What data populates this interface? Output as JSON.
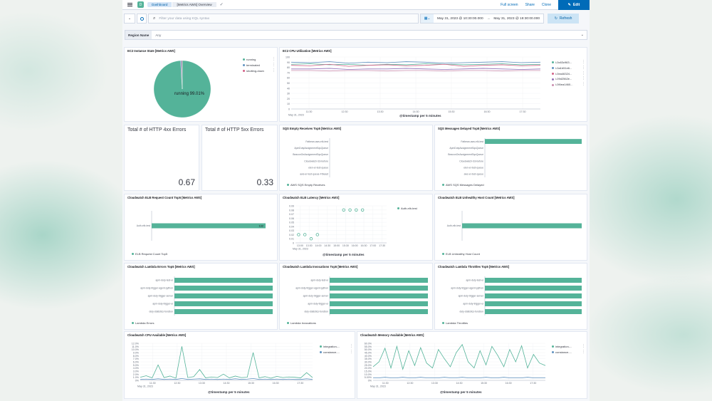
{
  "header": {
    "breadcrumb_root": "Dashboard",
    "breadcrumb_current": "[Metrics AWS] Overview",
    "full_screen": "Full screen",
    "share": "Share",
    "clone": "Clone",
    "edit": "Edit"
  },
  "query": {
    "placeholder": "Filter your data using KQL syntax",
    "date_start": "May 31, 2023 @ 10:30:00.000",
    "arrow": "→",
    "date_end": "May 31, 2023 @ 18:30:00.000",
    "refresh": "Refresh"
  },
  "filter": {
    "label": "Region Name",
    "value": "Any"
  },
  "colors": {
    "teal": "#54b399",
    "blue": "#6092c0",
    "pink": "#d36086",
    "purple": "#9170b8",
    "pinkLight": "#ca8eae"
  },
  "panels": {
    "ec2_state": {
      "title": "EC2 Instance State [Metrics AWS]",
      "legend": [
        "running",
        "terminated",
        "shutting-down"
      ],
      "slice_label": "running 99.01%"
    },
    "cpu_util": {
      "title": "EC2 CPU Utilization [Metrics AWS]",
      "legend": [
        "i-0c63c963...",
        "i-0a1b51e6...",
        "i-0ea46324...",
        "i-09d2562e...",
        "i-0f4ea1460..."
      ],
      "xaxis_label": "@timestamp per 5 minutes",
      "date": "May 31, 2023"
    },
    "http4xx": {
      "title": "Total # of HTTP 4xx Errors",
      "value": "0.67"
    },
    "http5xx": {
      "title": "Total # of HTTP 5xx Errors",
      "value": "0.33"
    },
    "sqs_empty": {
      "title": "SQS Empty Receives Top5 [Metrics AWS]",
      "legend": "AWS SQS Empty Receives"
    },
    "sqs_delayed": {
      "title": "SQS Messages Delayed Top5 [Metrics AWS]",
      "legend": "AWS SQS Messages Delayed"
    },
    "elb_request": {
      "title": "Cloudwatch ELB Request Count Top5 [Metrics AWS]",
      "legend": "ELB Request Count Top5",
      "bar_label": "132"
    },
    "elb_latency": {
      "title": "Cloudwatch ELB Latency [Metrics AWS]",
      "legend": "Auth-elb-test",
      "xaxis_label": "@timestamp per 5 minutes",
      "date": "May 31, 2023"
    },
    "elb_unhealthy": {
      "title": "Cloudwatch ELB Unhealthy Host Count [Metrics AWS]",
      "legend": "ELB Unhealthy Host Count"
    },
    "lambda_errors": {
      "title": "Cloudwatch Lambda Errors Top5 [Metrics AWS]",
      "legend": "Lambda Errors"
    },
    "lambda_invocations": {
      "title": "Cloudwatch Lambda Invocations Top5 [Metrics AWS]",
      "legend": "Lambda Invocations"
    },
    "lambda_throttles": {
      "title": "Cloudwatch Lambda Throttles Top5 [Metrics AWS]",
      "legend": "Lambda Throttles"
    },
    "cpu_available": {
      "title": "Cloudwatch CPU Available [Metrics AWS]",
      "legend": [
        "integration-...",
        "constance-..."
      ],
      "xaxis_label": "@timestamp per 5 minutes",
      "date": "May 31, 2023"
    },
    "mem_available": {
      "title": "Cloudwatch Memory Available [Metrics AWS]",
      "legend": [
        "integration-...",
        "constance-..."
      ],
      "xaxis_label": "@timestamp per 5 minutes",
      "date": "May 31, 2023"
    }
  },
  "chart_data": [
    {
      "type": "pie",
      "panel": "ec2_state",
      "categories": [
        "running",
        "terminated",
        "shutting-down"
      ],
      "values": [
        99.01,
        0.6,
        0.39
      ],
      "colors": [
        "#54b399",
        "#6092c0",
        "#d36086"
      ]
    },
    {
      "type": "line",
      "panel": "cpu_util",
      "x": [
        "11:30",
        "12:00",
        "12:30",
        "13:00",
        "13:30",
        "14:00",
        "14:30",
        "15:00",
        "15:30",
        "16:00",
        "16:30",
        "17:00",
        "17:30",
        "18:00"
      ],
      "xticks": [
        "11:30",
        "12:30",
        "13:30",
        "14:30",
        "15:30",
        "16:30",
        "17:30"
      ],
      "yticks": [
        "0",
        "10",
        "20",
        "30",
        "40",
        "50",
        "60",
        "70",
        "80",
        "90",
        "100"
      ],
      "ylim": [
        0,
        100
      ],
      "series": [
        {
          "name": "i-0c63c963...",
          "color": "#54b399",
          "values": [
            86,
            87,
            85,
            86,
            84,
            86,
            85,
            87,
            86,
            85,
            86,
            87,
            85,
            86
          ]
        },
        {
          "name": "i-0a1b51e6...",
          "color": "#6092c0",
          "values": [
            90,
            89,
            91,
            88,
            90,
            89,
            91,
            90,
            88,
            89,
            90,
            91,
            89,
            90
          ]
        },
        {
          "name": "i-0ea46324...",
          "color": "#d36086",
          "values": [
            84,
            83,
            86,
            82,
            84,
            85,
            83,
            84,
            86,
            82,
            84,
            85,
            83,
            84
          ]
        },
        {
          "name": "i-09d2562e...",
          "color": "#9170b8",
          "values": [
            77,
            77,
            78,
            76,
            77,
            77,
            78,
            77,
            76,
            77,
            78,
            77,
            76,
            77
          ]
        },
        {
          "name": "i-0f4ea1460...",
          "color": "#ca8eae",
          "values": [
            74,
            74,
            73,
            74,
            74,
            73,
            74,
            74,
            73,
            74,
            74,
            73,
            74,
            74
          ]
        }
      ]
    },
    {
      "type": "bar",
      "panel": "sqs_empty",
      "orientation": "horizontal",
      "categories": [
        "Fatbean-aws-elk-test",
        "ApmDutyAssignmentSqsQueue",
        "BeaconOnAssignmentSqsQueue",
        "Cloudwatch-S3-before",
        "elen-er-test-queue",
        "aws-er-test-queue-FIbeast"
      ],
      "values": [
        0,
        0,
        0,
        0,
        0,
        0
      ]
    },
    {
      "type": "bar",
      "panel": "sqs_delayed",
      "orientation": "horizontal",
      "categories": [
        "Fatbean-aws-elk-test",
        "ApmDutyAssignmentSqsQueue",
        "BeaconOnAssignmentSqsQueue",
        "Cloudwatch-S3-before",
        "elen-er-test-queue",
        "aws-er-test-queue"
      ],
      "values": [
        1,
        0,
        0,
        0,
        0,
        0
      ]
    },
    {
      "type": "bar",
      "panel": "elb_request",
      "orientation": "horizontal",
      "categories": [
        "Auth-elb-test"
      ],
      "values": [
        132
      ]
    },
    {
      "type": "scatter",
      "panel": "elb_latency",
      "x": [
        "11:54",
        "12:10",
        "12:25",
        "12:40",
        "13:12",
        "13:35",
        "13:45",
        "13:55"
      ],
      "values": [
        0.02,
        0.02,
        0.01,
        0.02,
        0.08,
        0.08,
        0.08,
        0.08
      ],
      "xticks": [
        "13:00",
        "13:30",
        "14:00",
        "14:30",
        "15:00",
        "15:30",
        "16:00",
        "16:30",
        "17:00",
        "17:30"
      ],
      "yticks": [
        "0",
        "0.01",
        "0.02",
        "0.03",
        "0.04",
        "0.05",
        "0.06",
        "0.07",
        "0.08",
        "0.09"
      ],
      "ylim": [
        0,
        0.09
      ]
    },
    {
      "type": "bar",
      "panel": "elb_unhealthy",
      "orientation": "horizontal",
      "categories": [
        "Auth-elb-test"
      ],
      "values": [
        1
      ]
    },
    {
      "type": "bar",
      "panel": "lambda_errors",
      "orientation": "horizontal",
      "categories": [
        "apm-duty-test-ui",
        "apm-duty-trigger-agent-python",
        "apm-duty-trigger-server",
        "apm-duty-trigger-ui",
        "duty-statistics-function"
      ],
      "values": [
        1,
        1,
        1,
        1,
        1
      ]
    },
    {
      "type": "bar",
      "panel": "lambda_invocations",
      "orientation": "horizontal",
      "categories": [
        "apm-duty-test-ui",
        "apm-duty-trigger-agent-python",
        "apm-duty-trigger-server",
        "apm-duty-trigger-ui",
        "duty-statistics-function"
      ],
      "values": [
        1,
        1,
        1,
        1,
        1
      ]
    },
    {
      "type": "bar",
      "panel": "lambda_throttles",
      "orientation": "horizontal",
      "categories": [
        "apm-duty-test-ui",
        "apm-duty-trigger-agent-python",
        "apm-duty-trigger-server",
        "apm-duty-trigger-ui",
        "duty-statistics-function"
      ],
      "values": [
        1,
        1,
        1,
        1,
        1
      ]
    },
    {
      "type": "line",
      "panel": "cpu_available",
      "yticks": [
        "0%",
        "1.0%",
        "2.0%",
        "3.0%",
        "4.0%",
        "5.0%",
        "6.0%",
        "7.0%",
        "8.0%",
        "9.0%",
        "10.0%",
        "11.0%",
        "12.0%"
      ],
      "ylim": [
        0,
        12
      ],
      "xticks": [
        "11:30",
        "12:30",
        "13:30",
        "14:30",
        "15:30",
        "16:30",
        "17:30"
      ],
      "series": [
        {
          "name": "integration-...",
          "color": "#54b399",
          "values": [
            1,
            1.5,
            0.8,
            5,
            0.9,
            1.4,
            0.7,
            11,
            0.9,
            1.2,
            3.5,
            0.8,
            1.1,
            0.9,
            2,
            0.8,
            1.4,
            0.9,
            1,
            9,
            0.8,
            1.2,
            0.7,
            1.3,
            0.9,
            1.1,
            1,
            0.8,
            2.5,
            0.9
          ]
        },
        {
          "name": "constance-...",
          "color": "#6092c0",
          "values": [
            0.3,
            0.4,
            0.3,
            0.5,
            0.3,
            0.4,
            0.3,
            0.6,
            0.3,
            0.4,
            0.5,
            0.3,
            0.4,
            0.3,
            0.4,
            0.3,
            0.5,
            0.3,
            0.4,
            0.6,
            0.3,
            0.4,
            0.3,
            0.4,
            0.3,
            0.4,
            0.3,
            0.3,
            0.5,
            0.3
          ]
        }
      ]
    },
    {
      "type": "line",
      "panel": "mem_available",
      "yticks": [
        "0%",
        "5.00%",
        "10.0%",
        "15.0%",
        "20.0%",
        "25.0%",
        "30.0%",
        "35.0%",
        "40.0%",
        "45.0%",
        "50.0%",
        "55.0%",
        "60.0%"
      ],
      "ylim": [
        0,
        60
      ],
      "xticks": [
        "11:30",
        "12:30",
        "13:30",
        "14:30",
        "15:30",
        "16:30",
        "17:30"
      ],
      "series": [
        {
          "name": "integration-...",
          "color": "#54b399",
          "values": [
            22,
            30,
            52,
            20,
            55,
            18,
            48,
            24,
            53,
            28,
            20,
            50,
            35,
            22,
            45,
            58,
            30,
            20,
            48,
            25,
            55,
            40,
            22,
            50,
            30,
            56,
            20,
            42,
            28,
            24
          ]
        },
        {
          "name": "constance-...",
          "color": "#6092c0",
          "values": [
            4,
            4,
            5,
            4,
            4,
            5,
            4,
            4,
            5,
            4,
            4,
            4,
            5,
            4,
            4,
            5,
            4,
            4,
            4,
            5,
            4,
            4,
            5,
            4,
            4,
            4,
            5,
            4,
            4,
            4
          ]
        }
      ]
    }
  ]
}
